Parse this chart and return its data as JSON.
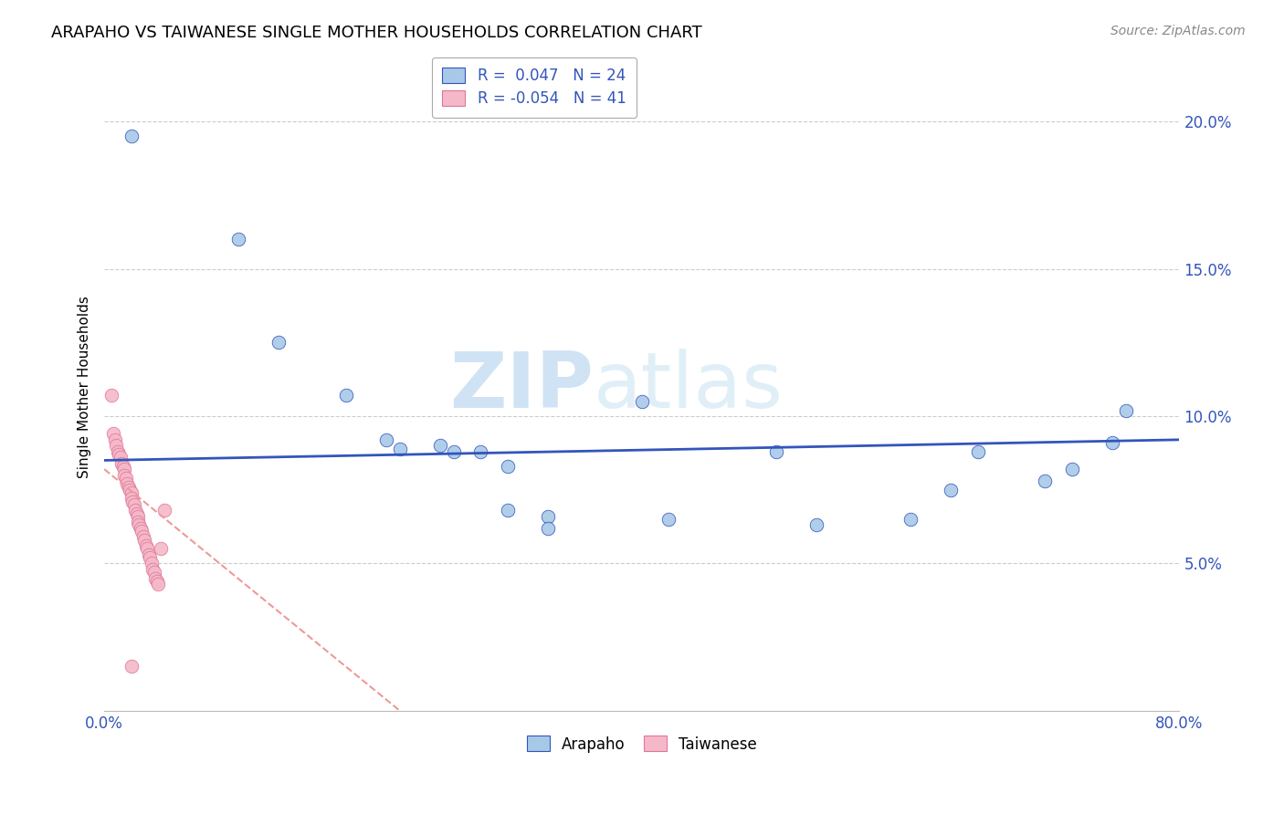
{
  "title": "ARAPAHO VS TAIWANESE SINGLE MOTHER HOUSEHOLDS CORRELATION CHART",
  "source": "Source: ZipAtlas.com",
  "ylabel": "Single Mother Households",
  "xlim": [
    0.0,
    0.8
  ],
  "ylim": [
    0.0,
    0.22
  ],
  "yticks": [
    0.05,
    0.1,
    0.15,
    0.2
  ],
  "ytick_labels": [
    "5.0%",
    "10.0%",
    "15.0%",
    "20.0%"
  ],
  "xticks": [
    0.0,
    0.1,
    0.2,
    0.3,
    0.4,
    0.5,
    0.6,
    0.7,
    0.8
  ],
  "xtick_labels": [
    "0.0%",
    "",
    "",
    "",
    "",
    "",
    "",
    "",
    "80.0%"
  ],
  "arapaho_color": "#a8c8e8",
  "taiwanese_color": "#f5b8c8",
  "arapaho_line_color": "#3355bb",
  "taiwanese_line_color": "#ee9999",
  "legend_arapaho_label": "R =  0.047   N = 24",
  "legend_taiwanese_label": "R = -0.054   N = 41",
  "watermark_zip": "ZIP",
  "watermark_atlas": "atlas",
  "background_color": "#ffffff",
  "grid_color": "#cccccc",
  "arapaho_x": [
    0.02,
    0.1,
    0.13,
    0.18,
    0.21,
    0.22,
    0.25,
    0.26,
    0.28,
    0.3,
    0.3,
    0.33,
    0.33,
    0.4,
    0.42,
    0.5,
    0.53,
    0.6,
    0.63,
    0.65,
    0.7,
    0.72,
    0.75,
    0.76
  ],
  "arapaho_y": [
    0.195,
    0.16,
    0.125,
    0.107,
    0.092,
    0.089,
    0.09,
    0.088,
    0.088,
    0.083,
    0.068,
    0.066,
    0.062,
    0.105,
    0.065,
    0.088,
    0.063,
    0.065,
    0.075,
    0.088,
    0.078,
    0.082,
    0.091,
    0.102
  ],
  "taiwanese_x": [
    0.005,
    0.007,
    0.008,
    0.009,
    0.01,
    0.011,
    0.012,
    0.013,
    0.014,
    0.015,
    0.015,
    0.016,
    0.017,
    0.018,
    0.019,
    0.02,
    0.02,
    0.021,
    0.022,
    0.023,
    0.024,
    0.025,
    0.025,
    0.026,
    0.027,
    0.028,
    0.029,
    0.03,
    0.031,
    0.032,
    0.033,
    0.034,
    0.035,
    0.036,
    0.037,
    0.038,
    0.039,
    0.04,
    0.042,
    0.045,
    0.02
  ],
  "taiwanese_y": [
    0.107,
    0.094,
    0.092,
    0.09,
    0.088,
    0.087,
    0.086,
    0.084,
    0.083,
    0.082,
    0.08,
    0.079,
    0.077,
    0.076,
    0.075,
    0.074,
    0.072,
    0.071,
    0.07,
    0.068,
    0.067,
    0.066,
    0.064,
    0.063,
    0.062,
    0.061,
    0.059,
    0.058,
    0.056,
    0.055,
    0.053,
    0.052,
    0.05,
    0.048,
    0.047,
    0.045,
    0.044,
    0.043,
    0.055,
    0.068,
    0.015
  ]
}
